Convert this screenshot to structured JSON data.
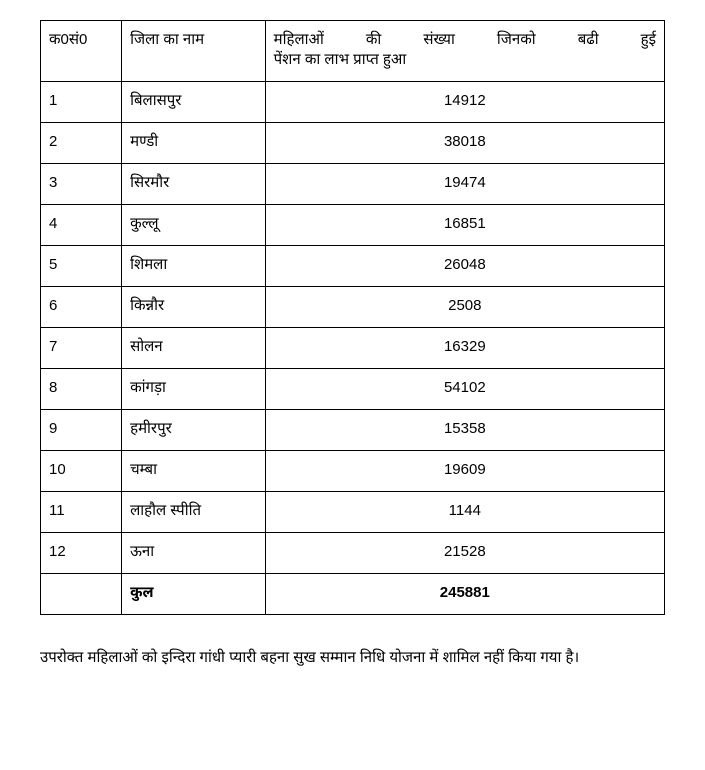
{
  "table": {
    "headers": {
      "sno": "क0सं0",
      "district": "जिला का नाम",
      "count_line1": "महिलाओं की संख्या जिनको बढी हुई",
      "count_line2": "पेंशन  का लाभ प्राप्त हुआ"
    },
    "rows": [
      {
        "sno": "1",
        "district": "बिलासपुर",
        "count": "14912"
      },
      {
        "sno": "2",
        "district": "मण्डी",
        "count": "38018"
      },
      {
        "sno": "3",
        "district": "सिरमौर",
        "count": "19474"
      },
      {
        "sno": "4",
        "district": "कुल्लू",
        "count": "16851"
      },
      {
        "sno": "5",
        "district": "शिमला",
        "count": "26048"
      },
      {
        "sno": "6",
        "district": "किन्नौर",
        "count": "2508"
      },
      {
        "sno": "7",
        "district": "सोलन",
        "count": "16329"
      },
      {
        "sno": "8",
        "district": "कांगड़ा",
        "count": "54102"
      },
      {
        "sno": "9",
        "district": "हमीरपुर",
        "count": "15358"
      },
      {
        "sno": "10",
        "district": "चम्बा",
        "count": "19609"
      },
      {
        "sno": "11",
        "district": "लाहौल स्पीति",
        "count": "1144"
      },
      {
        "sno": "12",
        "district": "ऊना",
        "count": "21528"
      }
    ],
    "total": {
      "label": "कुल",
      "value": "245881"
    }
  },
  "footer_note": "उपरोक्त महिलाओं को इन्दिरा गांधी प्यारी बहना सुख सम्मान निधि योजना में शामिल नहीं किया गया है।"
}
